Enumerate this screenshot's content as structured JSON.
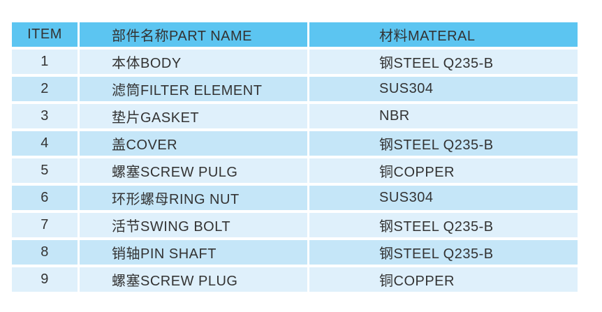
{
  "page": {
    "background": "#ffffff"
  },
  "table": {
    "columns": [
      {
        "id": "item",
        "label": "ITEM"
      },
      {
        "id": "part_name",
        "label": "部件名称PART NAME"
      },
      {
        "id": "material",
        "label": "材料MATERAL"
      }
    ],
    "rows": [
      {
        "item": "1",
        "part_name": "本体BODY",
        "material": "钢STEEL Q235-B"
      },
      {
        "item": "2",
        "part_name": "滤筒FILTER ELEMENT",
        "material": "SUS304"
      },
      {
        "item": "3",
        "part_name": "垫片GASKET",
        "material": "NBR"
      },
      {
        "item": "4",
        "part_name": "盖COVER",
        "material": "钢STEEL Q235-B"
      },
      {
        "item": "5",
        "part_name": "螺塞SCREW PULG",
        "material": "铜COPPER"
      },
      {
        "item": "6",
        "part_name": "环形螺母RING NUT",
        "material": "SUS304"
      },
      {
        "item": "7",
        "part_name": "活节SWING BOLT",
        "material": "钢STEEL Q235-B"
      },
      {
        "item": "8",
        "part_name": "销轴PIN SHAFT",
        "material": "钢STEEL Q235-B"
      },
      {
        "item": "9",
        "part_name": "螺塞SCREW PLUG",
        "material": "铜COPPER"
      }
    ],
    "colors": {
      "header_bg": "#5cc5f1",
      "row_odd_bg": "#dff0fb",
      "row_even_bg": "#c5e6f8",
      "gap": "#ffffff",
      "text": "#333333"
    }
  }
}
